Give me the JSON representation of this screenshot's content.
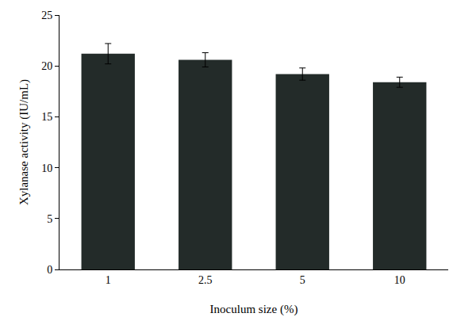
{
  "chart_data": {
    "type": "bar",
    "x_label": "Inoculum size (%)",
    "y_label": "Xylanase activity (IU/mL)",
    "categories": [
      "1",
      "2.5",
      "5",
      "10"
    ],
    "values": [
      21.2,
      20.6,
      19.2,
      18.4
    ],
    "errors": [
      1.0,
      0.7,
      0.6,
      0.5
    ],
    "color": "#232b29",
    "ylim": [
      0,
      25
    ],
    "yticks": [
      0,
      5,
      10,
      15,
      20,
      25
    ],
    "grid": false
  }
}
